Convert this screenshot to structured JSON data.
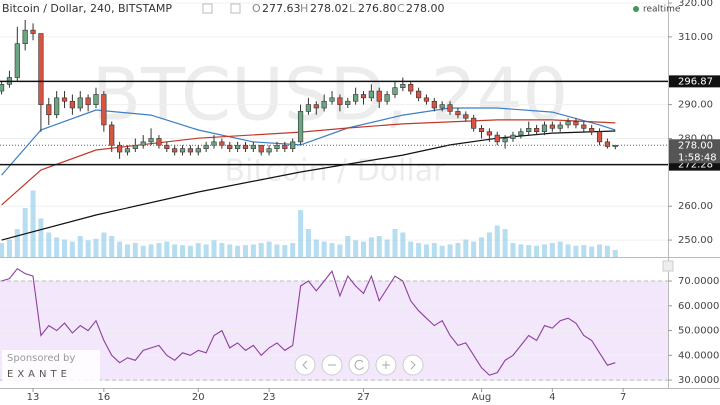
{
  "header": {
    "symbol": "Bitcoin / Dollar, 240, BITSTAMP",
    "o": "O",
    "open": "277.63",
    "h": "H",
    "high": "278.02",
    "l": "L",
    "low": "276.80",
    "c": "C",
    "close": "278.00",
    "status": "realtime"
  },
  "sponsor": {
    "label": "Sponsored by",
    "name": "EXANTE"
  },
  "chart_data": [
    {
      "type": "candlestick",
      "watermark": [
        "BTCUSD, 240",
        "Bitcoin / Dollar"
      ],
      "xlim": [
        -0.2,
        84.7
      ],
      "ylim": [
        245,
        320.9
      ],
      "yticks": [
        {
          "value": 320,
          "label": "320.00"
        },
        {
          "value": 310,
          "label": "310.00"
        },
        {
          "value": 290,
          "label": "290.00"
        },
        {
          "value": 280,
          "label": "280.00"
        },
        {
          "value": 260,
          "label": "260.00"
        },
        {
          "value": 250,
          "label": "250.00"
        }
      ],
      "grid": true,
      "up_color": "#6ba583",
      "down_color": "#d75442",
      "open": [
        294,
        296,
        298,
        308,
        312,
        311,
        290,
        287,
        292,
        291,
        289,
        292,
        290,
        293,
        284,
        278,
        276,
        277,
        278,
        279,
        280,
        278,
        277,
        276,
        277,
        276,
        277,
        278,
        279,
        278,
        277,
        278,
        277,
        278,
        276,
        277,
        278,
        277,
        279,
        288,
        290,
        289,
        291,
        292,
        290,
        291,
        293,
        292,
        294,
        291,
        293,
        295,
        296,
        294,
        292,
        291,
        289,
        290,
        288,
        287,
        286,
        283,
        282,
        281,
        279,
        280,
        281,
        282,
        283,
        282,
        284,
        283,
        284,
        285,
        284,
        283,
        282,
        279,
        277.63
      ],
      "high": [
        297,
        300,
        313,
        315,
        314,
        311,
        292,
        294,
        294,
        293,
        294,
        293,
        295,
        294,
        285,
        279,
        278,
        280,
        281,
        283,
        281,
        279,
        278,
        278,
        278,
        278,
        279,
        281,
        280,
        279,
        279,
        279,
        279,
        278,
        278,
        279,
        279,
        280,
        290,
        292,
        291,
        293,
        294,
        293,
        292,
        295,
        294,
        296,
        295,
        294,
        297,
        298,
        297,
        295,
        293,
        292,
        291,
        291,
        289,
        288,
        287,
        284,
        283,
        282,
        281,
        282,
        283,
        285,
        284,
        285,
        285,
        285,
        286,
        286,
        285,
        284,
        283,
        280,
        278.02
      ],
      "low": [
        293,
        295,
        297,
        306,
        309,
        282,
        284,
        286,
        289,
        287,
        288,
        288,
        289,
        282,
        276,
        274,
        275,
        276,
        277,
        278,
        277,
        276,
        275,
        275,
        275,
        275,
        276,
        277,
        277,
        276,
        276,
        276,
        276,
        275,
        275,
        276,
        276,
        276,
        278,
        287,
        287,
        288,
        290,
        288,
        289,
        290,
        290,
        291,
        289,
        290,
        292,
        294,
        293,
        291,
        290,
        288,
        288,
        287,
        286,
        285,
        282,
        280,
        279,
        278,
        277,
        279,
        280,
        281,
        281,
        281,
        282,
        282,
        283,
        283,
        282,
        281,
        278,
        277,
        276.8
      ],
      "close": [
        296,
        298,
        308,
        312,
        311,
        290,
        287,
        292,
        291,
        289,
        292,
        290,
        293,
        284,
        278,
        276,
        277,
        278,
        279,
        280,
        278,
        277,
        276,
        277,
        276,
        277,
        278,
        279,
        278,
        277,
        278,
        277,
        278,
        276,
        277,
        278,
        277,
        279,
        288,
        290,
        289,
        291,
        292,
        290,
        291,
        293,
        292,
        294,
        291,
        293,
        295,
        296,
        294,
        292,
        291,
        289,
        290,
        288,
        287,
        286,
        283,
        282,
        281,
        279,
        280,
        281,
        282,
        283,
        282,
        284,
        283,
        284,
        285,
        284,
        283,
        282,
        279,
        277.63,
        278
      ],
      "series": [
        {
          "color": "#3b7fc4",
          "x": [
            0,
            5,
            12,
            19,
            25,
            32,
            38,
            44,
            51,
            57,
            63,
            70,
            76,
            78
          ],
          "values": [
            269.2,
            282.5,
            288.4,
            286.9,
            282.5,
            279.0,
            278.1,
            283.1,
            286.9,
            289.0,
            289.0,
            287.8,
            284.0,
            282.5
          ]
        },
        {
          "color": "#c0392b",
          "x": [
            0,
            5,
            12,
            25,
            38,
            44,
            51,
            57,
            63,
            70,
            78
          ],
          "values": [
            260.4,
            270.7,
            276.6,
            280.1,
            281.9,
            283.1,
            284.3,
            284.9,
            285.5,
            285.5,
            284.6
          ]
        },
        {
          "color": "#111111",
          "x": [
            0,
            12,
            25,
            38,
            51,
            57,
            63,
            70,
            78
          ],
          "values": [
            250.0,
            257.4,
            264.2,
            270.1,
            275.1,
            278.1,
            280.1,
            281.6,
            282.2
          ]
        }
      ],
      "volume": {
        "color": "#9fd1ec",
        "ylim": [
          0,
          100
        ],
        "values": [
          20,
          25,
          40,
          70,
          95,
          55,
          35,
          28,
          25,
          22,
          30,
          24,
          26,
          35,
          30,
          22,
          18,
          20,
          16,
          18,
          20,
          22,
          18,
          17,
          16,
          20,
          18,
          24,
          20,
          18,
          16,
          17,
          18,
          20,
          22,
          18,
          17,
          20,
          67,
          40,
          25,
          22,
          20,
          18,
          30,
          24,
          22,
          28,
          30,
          25,
          40,
          35,
          22,
          20,
          18,
          20,
          16,
          18,
          20,
          25,
          22,
          28,
          35,
          45,
          40,
          20,
          18,
          17,
          16,
          18,
          20,
          22,
          18,
          16,
          17,
          15,
          18,
          16,
          10
        ]
      },
      "levels": [
        296.87,
        272.28
      ],
      "last_price": {
        "value": 278,
        "label": "278.00"
      },
      "countdown": "1:58:48"
    },
    {
      "type": "line",
      "xlim": [
        -0.2,
        84.7
      ],
      "ylim": [
        26.8,
        78.9
      ],
      "yticks": [
        {
          "value": 70,
          "label": "70.0000"
        },
        {
          "value": 60,
          "label": "60.0000"
        },
        {
          "value": 50,
          "label": "50.0000"
        },
        {
          "value": 40,
          "label": "40.0000"
        },
        {
          "value": 30,
          "label": "30.0000"
        }
      ],
      "xticks": [
        {
          "value": 4,
          "label": "13"
        },
        {
          "value": 13,
          "label": "16"
        },
        {
          "value": 25,
          "label": "20"
        },
        {
          "value": 34,
          "label": "23"
        },
        {
          "value": 46,
          "label": "27"
        },
        {
          "value": 61,
          "label": "Aug"
        },
        {
          "value": 70,
          "label": "4"
        },
        {
          "value": 79,
          "label": "7"
        }
      ],
      "band": [
        30,
        70
      ],
      "band_color": "#f3e8fb",
      "series": [
        {
          "color": "#8e3fa0",
          "values": [
            70,
            71,
            75,
            73,
            72,
            48,
            52,
            50,
            53,
            49,
            52,
            50,
            54,
            46,
            40,
            37,
            39,
            38,
            42,
            43,
            44,
            40,
            38,
            41,
            40,
            42,
            41,
            48,
            50,
            43,
            45,
            42,
            44,
            40,
            43,
            45,
            42,
            44,
            68,
            70,
            66,
            70,
            74,
            64,
            72,
            68,
            65,
            72,
            62,
            67,
            72,
            70,
            62,
            58,
            55,
            52,
            54,
            48,
            44,
            45,
            40,
            35,
            32,
            33,
            38,
            40,
            44,
            48,
            46,
            52,
            51,
            54,
            55,
            53,
            48,
            46,
            41,
            36,
            37
          ]
        }
      ]
    }
  ]
}
